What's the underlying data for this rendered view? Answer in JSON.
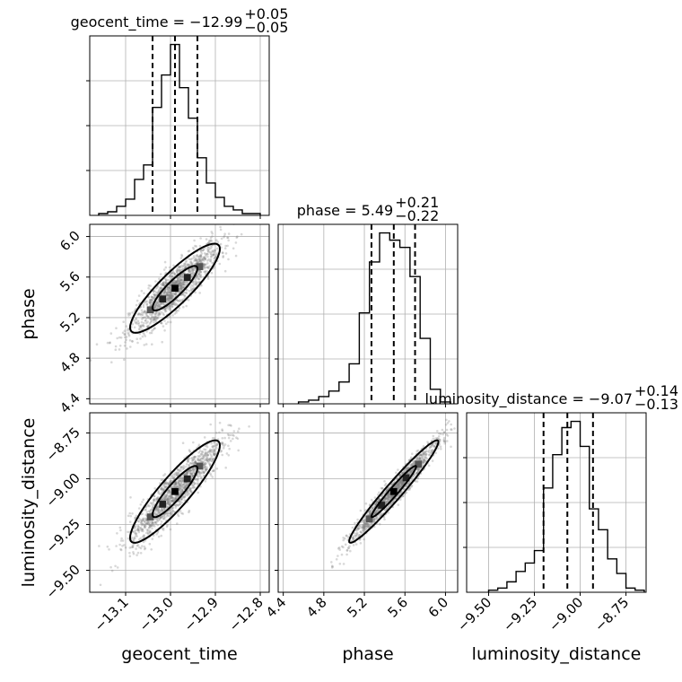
{
  "chart_data": {
    "type": "corner",
    "parameters": [
      {
        "name": "geocent_time",
        "axis_label": "geocent_time",
        "title_prefix": "geocent_time = −12.99",
        "title_upper": "+0.05",
        "title_lower": "−0.05",
        "median": -12.99,
        "q_low": -13.04,
        "q_high": -12.94,
        "range": [
          -13.18,
          -12.78
        ],
        "ticks": [
          -13.1,
          -13.0,
          -12.9,
          -12.8
        ],
        "tick_labels": [
          "−13.1",
          "−13.0",
          "−12.9",
          "−12.8"
        ],
        "hist_edges": [
          -13.16,
          -13.14,
          -13.12,
          -13.1,
          -13.08,
          -13.06,
          -13.04,
          -13.02,
          -13.0,
          -12.98,
          -12.96,
          -12.94,
          -12.92,
          -12.9,
          -12.88,
          -12.86,
          -12.84,
          -12.82,
          -12.8
        ],
        "hist_counts": [
          1,
          2,
          5,
          9,
          20,
          28,
          60,
          78,
          95,
          71,
          54,
          32,
          18,
          10,
          5,
          3,
          1,
          1
        ]
      },
      {
        "name": "phase",
        "axis_label": "phase",
        "title_prefix": "phase = 5.49",
        "title_upper": "+0.21",
        "title_lower": "−0.22",
        "median": 5.49,
        "q_low": 5.27,
        "q_high": 5.7,
        "range": [
          4.35,
          6.12
        ],
        "ticks": [
          4.4,
          4.8,
          5.2,
          5.6,
          6.0
        ],
        "tick_labels": [
          "4.4",
          "4.8",
          "5.2",
          "5.6",
          "6.0"
        ],
        "hist_edges": [
          4.55,
          4.65,
          4.75,
          4.85,
          4.95,
          5.05,
          5.15,
          5.25,
          5.35,
          5.45,
          5.55,
          5.65,
          5.75,
          5.85,
          5.95,
          6.05
        ],
        "hist_counts": [
          1,
          2,
          4,
          7,
          12,
          22,
          50,
          78,
          94,
          90,
          86,
          70,
          36,
          8,
          1
        ]
      },
      {
        "name": "luminosity_distance",
        "axis_label": "luminosity_distance",
        "title_prefix": "luminosity_distance = −9.07",
        "title_upper": "+0.14",
        "title_lower": "−0.13",
        "median": -9.07,
        "q_low": -9.2,
        "q_high": -8.93,
        "range": [
          -9.62,
          -8.64
        ],
        "ticks": [
          -9.5,
          -9.25,
          -9.0,
          -8.75
        ],
        "tick_labels": [
          "−9.50",
          "−9.25",
          "−9.00",
          "−8.75"
        ],
        "hist_edges": [
          -9.5,
          -9.45,
          -9.4,
          -9.35,
          -9.3,
          -9.25,
          -9.2,
          -9.15,
          -9.1,
          -9.05,
          -9.0,
          -8.95,
          -8.9,
          -8.85,
          -8.8,
          -8.75,
          -8.7,
          -8.65
        ],
        "hist_counts": [
          1,
          2,
          5,
          10,
          14,
          20,
          50,
          66,
          79,
          82,
          70,
          40,
          30,
          16,
          9,
          2,
          1
        ]
      }
    ],
    "pairs": [
      {
        "x": "geocent_time",
        "y": "phase",
        "center": [
          -12.99,
          5.49
        ],
        "sd": [
          0.05,
          0.22
        ],
        "corr": 0.88,
        "y_range": [
          4.35,
          6.12
        ],
        "y_ticks": [
          4.4,
          4.8,
          5.2,
          5.6,
          6.0
        ],
        "y_tick_labels": [
          "4.4",
          "4.8",
          "5.2",
          "5.6",
          "6.0"
        ]
      },
      {
        "x": "geocent_time",
        "y": "luminosity_distance",
        "center": [
          -12.99,
          -9.07
        ],
        "sd": [
          0.05,
          0.14
        ],
        "corr": 0.9,
        "y_range": [
          -9.62,
          -8.64
        ],
        "y_ticks": [
          -9.5,
          -9.25,
          -9.0,
          -8.75
        ],
        "y_tick_labels": [
          "−9.50",
          "−9.25",
          "−9.00",
          "−8.75"
        ]
      },
      {
        "x": "phase",
        "y": "luminosity_distance",
        "center": [
          5.49,
          -9.07
        ],
        "sd": [
          0.22,
          0.14
        ],
        "corr": 0.97,
        "y_range": [
          -9.62,
          -8.64
        ],
        "y_ticks": [
          -9.5,
          -9.25,
          -9.0,
          -8.75
        ],
        "y_tick_labels": [
          "−9.50",
          "−9.25",
          "−9.00",
          "−8.75"
        ]
      }
    ],
    "contour_levels": [
      1,
      2
    ],
    "grid": true,
    "colors": {
      "line": "#000000",
      "scatter": "#7f7f7f",
      "grid": "#b0b0b0",
      "background": "#ffffff"
    }
  }
}
